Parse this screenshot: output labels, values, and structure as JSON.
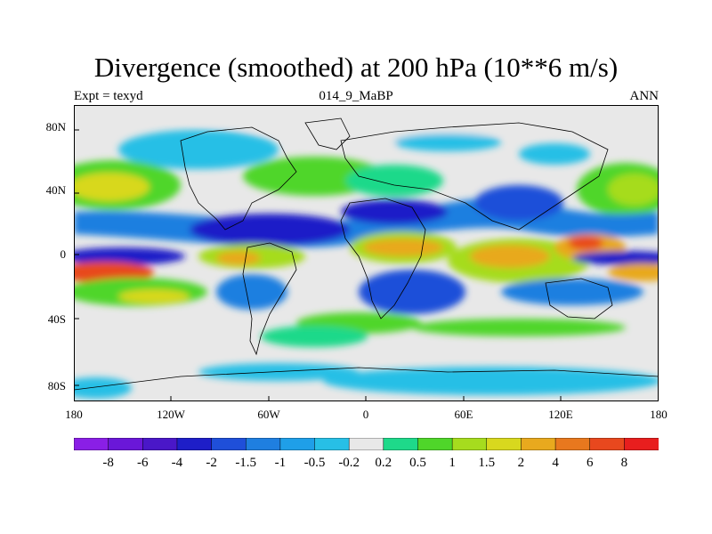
{
  "title": "Divergence (smoothed) at 200 hPa (10**6 m/s)",
  "subtitle_left": "Expt = texyd",
  "subtitle_center": "014_9_MaBP",
  "subtitle_right": "ANN",
  "lat_labels": [
    "80N",
    "40N",
    "0",
    "40S",
    "80S"
  ],
  "lon_labels": [
    "180",
    "120W",
    "60W",
    "0",
    "60E",
    "120E",
    "180"
  ],
  "colorbar": {
    "labels": [
      "-8",
      "-6",
      "-4",
      "-2",
      "-1.5",
      "-1",
      "-0.5",
      "-0.2",
      "0.2",
      "0.5",
      "1",
      "1.5",
      "2",
      "4",
      "6",
      "8"
    ],
    "colors": [
      "#8a1fe6",
      "#6a17d8",
      "#4a17c8",
      "#1e1ec8",
      "#1f4fd9",
      "#1f7fe0",
      "#1f9fe8",
      "#27bfe6",
      "#e8e8e8",
      "#1ed98a",
      "#4fd62a",
      "#a6dc1e",
      "#d8d81e",
      "#e8a91e",
      "#e8781e",
      "#e8481e",
      "#e81e1e"
    ]
  },
  "chart_data": {
    "type": "heatmap",
    "title": "Divergence (smoothed) at 200 hPa (10**6 m/s)",
    "experiment": "texyd",
    "case": "014_9_MaBP",
    "season": "ANN",
    "x_range": [
      -180,
      180
    ],
    "y_range": [
      -90,
      90
    ],
    "contour_levels": [
      -8,
      -6,
      -4,
      -2,
      -1.5,
      -1,
      -0.5,
      -0.2,
      0.2,
      0.5,
      1,
      1.5,
      2,
      4,
      6,
      8
    ],
    "colors": {
      "land_outline": "#000000",
      "neutral": "#e8e8e8"
    }
  }
}
